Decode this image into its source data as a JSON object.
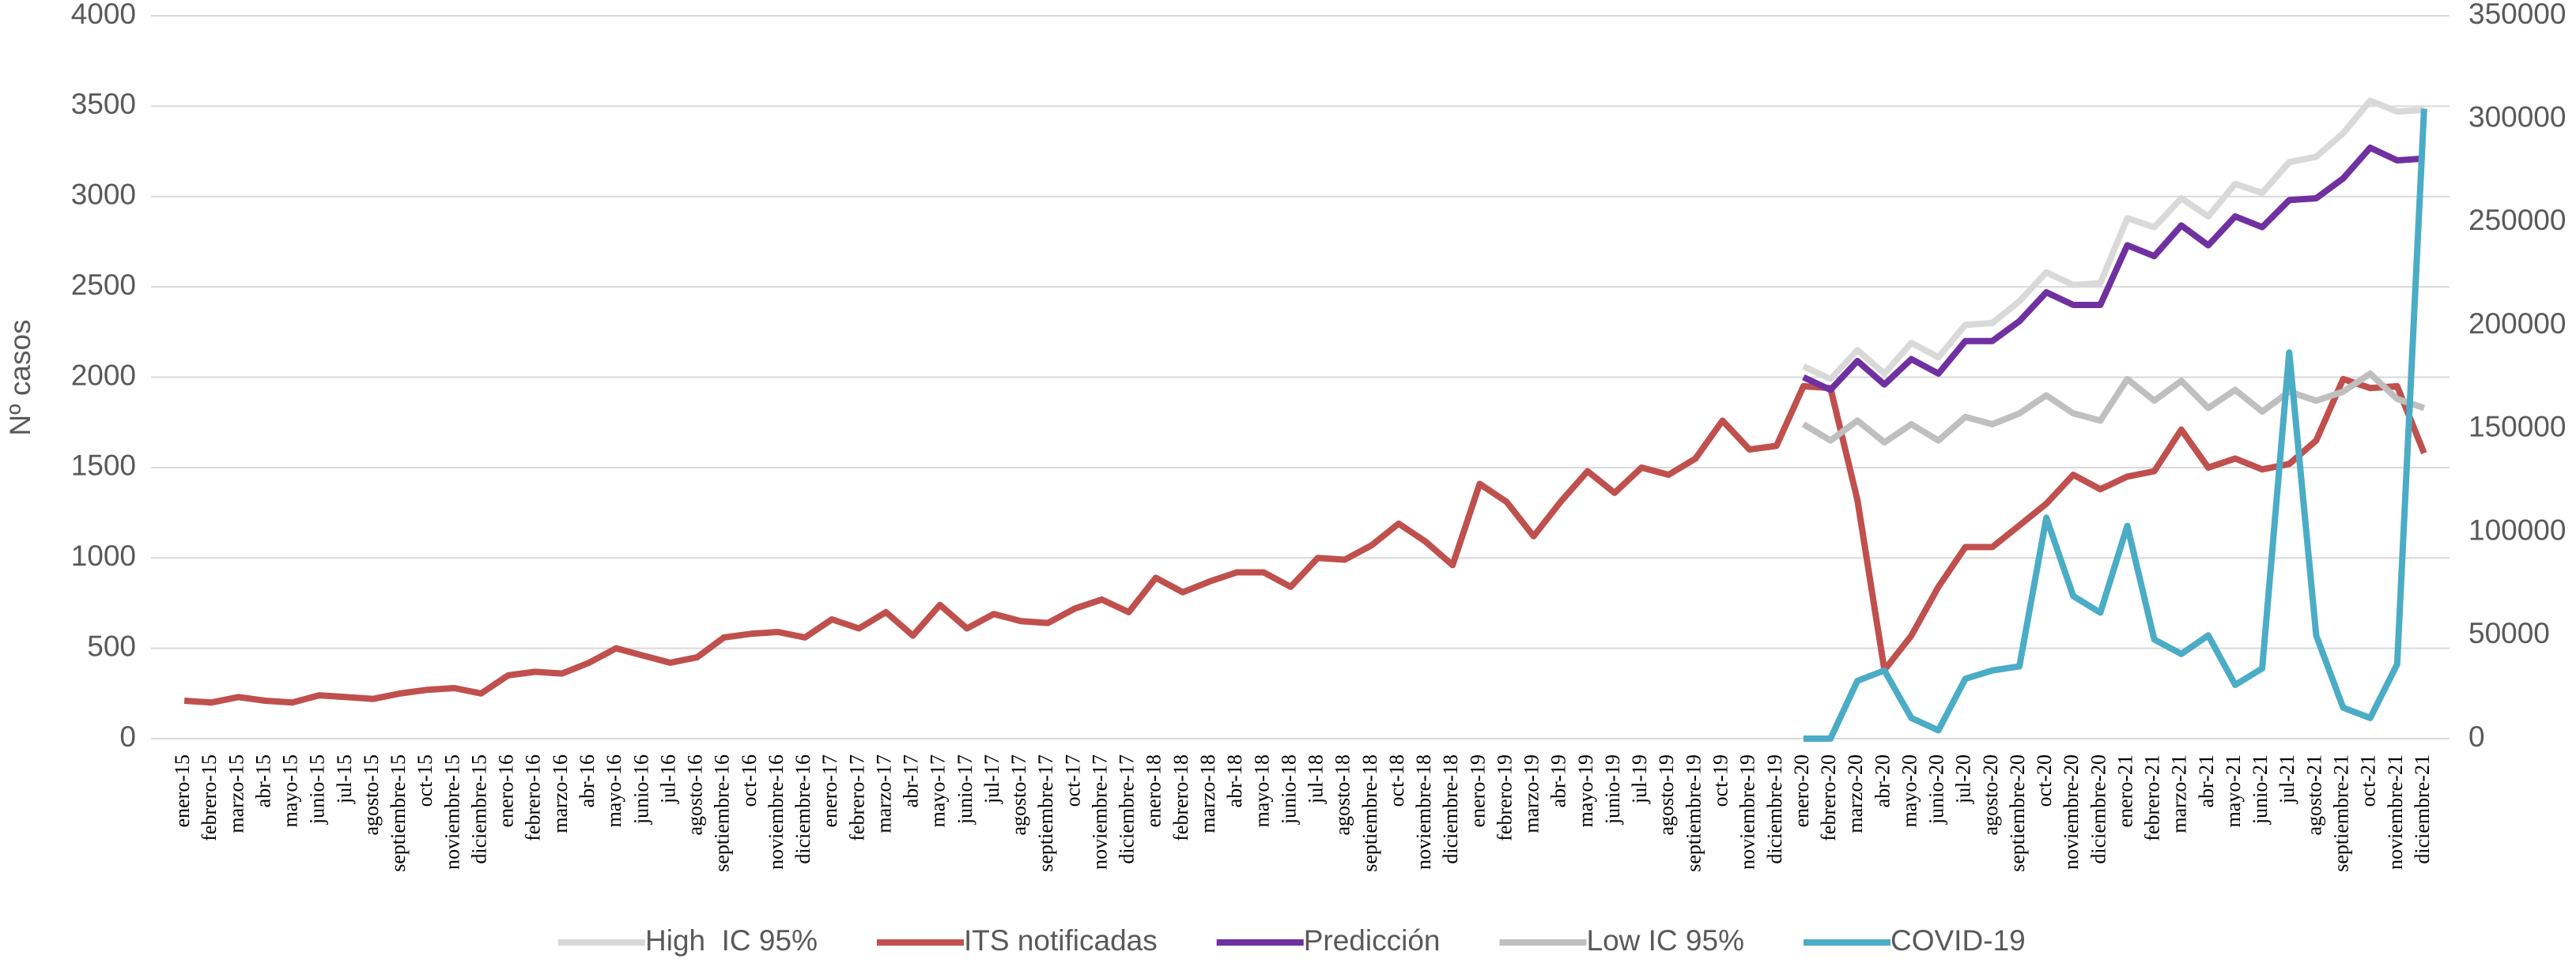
{
  "chart_data": {
    "type": "line",
    "y_label": "Nº casos",
    "categories": [
      "enero-15",
      "febrero-15",
      "marzo-15",
      "abr-15",
      "mayo-15",
      "junio-15",
      "jul-15",
      "agosto-15",
      "septiembre-15",
      "oct-15",
      "noviembre-15",
      "diciembre-15",
      "enero-16",
      "febrero-16",
      "marzo-16",
      "abr-16",
      "mayo-16",
      "junio-16",
      "jul-16",
      "agosto-16",
      "septiembre-16",
      "oct-16",
      "noviembre-16",
      "diciembre-16",
      "enero-17",
      "febrero-17",
      "marzo-17",
      "abr-17",
      "mayo-17",
      "junio-17",
      "jul-17",
      "agosto-17",
      "septiembre-17",
      "oct-17",
      "noviembre-17",
      "diciembre-17",
      "enero-18",
      "febrero-18",
      "marzo-18",
      "abr-18",
      "mayo-18",
      "junio-18",
      "jul-18",
      "agosto-18",
      "septiembre-18",
      "oct-18",
      "noviembre-18",
      "diciembre-18",
      "enero-19",
      "febrero-19",
      "marzo-19",
      "abr-19",
      "mayo-19",
      "junio-19",
      "jul-19",
      "agosto-19",
      "septiembre-19",
      "oct-19",
      "noviembre-19",
      "diciembre-19",
      "enero-20",
      "febrero-20",
      "marzo-20",
      "abr-20",
      "mayo-20",
      "junio-20",
      "jul-20",
      "agosto-20",
      "septiembre-20",
      "oct-20",
      "noviembre-20",
      "diciembre-20",
      "enero-21",
      "febrero-21",
      "marzo-21",
      "abr-21",
      "mayo-21",
      "junio-21",
      "jul-21",
      "agosto-21",
      "septiembre-21",
      "oct-21",
      "noviembre-21",
      "diciembre-21"
    ],
    "ylim": [
      0,
      4000
    ],
    "yticks": [
      0,
      500,
      1000,
      1500,
      2000,
      2500,
      3000,
      3500,
      4000
    ],
    "y2lim": [
      0,
      350000
    ],
    "y2ticks": [
      0,
      50000,
      100000,
      150000,
      200000,
      250000,
      300000,
      350000
    ],
    "grid": true,
    "legend": "bottom",
    "series": [
      {
        "name": "High  IC 95%",
        "color": "#d9d9d9",
        "values": [
          null,
          null,
          null,
          null,
          null,
          null,
          null,
          null,
          null,
          null,
          null,
          null,
          null,
          null,
          null,
          null,
          null,
          null,
          null,
          null,
          null,
          null,
          null,
          null,
          null,
          null,
          null,
          null,
          null,
          null,
          null,
          null,
          null,
          null,
          null,
          null,
          null,
          null,
          null,
          null,
          null,
          null,
          null,
          null,
          null,
          null,
          null,
          null,
          null,
          null,
          null,
          null,
          null,
          null,
          null,
          null,
          null,
          null,
          null,
          null,
          2060,
          1990,
          2150,
          2020,
          2190,
          2110,
          2290,
          2300,
          2420,
          2580,
          2510,
          2520,
          2880,
          2830,
          2990,
          2890,
          3070,
          3020,
          3190,
          3220,
          3350,
          3530,
          3470,
          3480
        ]
      },
      {
        "name": "ITS notificadas",
        "color": "#c0504d",
        "values": [
          210,
          200,
          230,
          210,
          200,
          240,
          230,
          220,
          250,
          270,
          280,
          250,
          350,
          370,
          360,
          420,
          500,
          460,
          420,
          450,
          560,
          580,
          590,
          560,
          660,
          610,
          700,
          570,
          740,
          610,
          690,
          650,
          640,
          720,
          770,
          700,
          890,
          810,
          870,
          920,
          920,
          840,
          1000,
          990,
          1070,
          1190,
          1090,
          960,
          1410,
          1310,
          1120,
          1310,
          1480,
          1360,
          1500,
          1460,
          1550,
          1760,
          1600,
          1620,
          1950,
          1940,
          1320,
          380,
          570,
          840,
          1060,
          1060,
          1180,
          1300,
          1460,
          1380,
          1450,
          1480,
          1710,
          1500,
          1550,
          1490,
          1520,
          1650,
          1990,
          1940,
          1950,
          1580
        ]
      },
      {
        "name": "Predicción",
        "color": "#7030a0",
        "values": [
          null,
          null,
          null,
          null,
          null,
          null,
          null,
          null,
          null,
          null,
          null,
          null,
          null,
          null,
          null,
          null,
          null,
          null,
          null,
          null,
          null,
          null,
          null,
          null,
          null,
          null,
          null,
          null,
          null,
          null,
          null,
          null,
          null,
          null,
          null,
          null,
          null,
          null,
          null,
          null,
          null,
          null,
          null,
          null,
          null,
          null,
          null,
          null,
          null,
          null,
          null,
          null,
          null,
          null,
          null,
          null,
          null,
          null,
          null,
          null,
          2000,
          1930,
          2090,
          1960,
          2100,
          2020,
          2200,
          2200,
          2310,
          2470,
          2400,
          2400,
          2730,
          2670,
          2840,
          2730,
          2890,
          2830,
          2980,
          2990,
          3100,
          3270,
          3200,
          3210
        ]
      },
      {
        "name": "Low IC 95%",
        "color": "#bfbfbf",
        "values": [
          null,
          null,
          null,
          null,
          null,
          null,
          null,
          null,
          null,
          null,
          null,
          null,
          null,
          null,
          null,
          null,
          null,
          null,
          null,
          null,
          null,
          null,
          null,
          null,
          null,
          null,
          null,
          null,
          null,
          null,
          null,
          null,
          null,
          null,
          null,
          null,
          null,
          null,
          null,
          null,
          null,
          null,
          null,
          null,
          null,
          null,
          null,
          null,
          null,
          null,
          null,
          null,
          null,
          null,
          null,
          null,
          null,
          null,
          null,
          null,
          1740,
          1650,
          1760,
          1640,
          1740,
          1650,
          1780,
          1740,
          1800,
          1900,
          1800,
          1760,
          1990,
          1870,
          1980,
          1830,
          1930,
          1810,
          1920,
          1870,
          1920,
          2020,
          1880,
          1830
        ]
      },
      {
        "name": "COVID-19",
        "color": "#4bacc6",
        "axis": "y2",
        "values": [
          null,
          null,
          null,
          null,
          null,
          null,
          null,
          null,
          null,
          null,
          null,
          null,
          null,
          null,
          null,
          null,
          null,
          null,
          null,
          null,
          null,
          null,
          null,
          null,
          null,
          null,
          null,
          null,
          null,
          null,
          null,
          null,
          null,
          null,
          null,
          null,
          null,
          null,
          null,
          null,
          null,
          null,
          null,
          null,
          null,
          null,
          null,
          null,
          null,
          null,
          null,
          null,
          null,
          null,
          null,
          null,
          null,
          null,
          null,
          null,
          0,
          0,
          28000,
          33000,
          10000,
          4000,
          29000,
          33000,
          35000,
          107000,
          69000,
          61000,
          103000,
          48000,
          41000,
          50000,
          26000,
          34000,
          187000,
          50000,
          15000,
          10000,
          36000,
          305000
        ]
      }
    ]
  }
}
